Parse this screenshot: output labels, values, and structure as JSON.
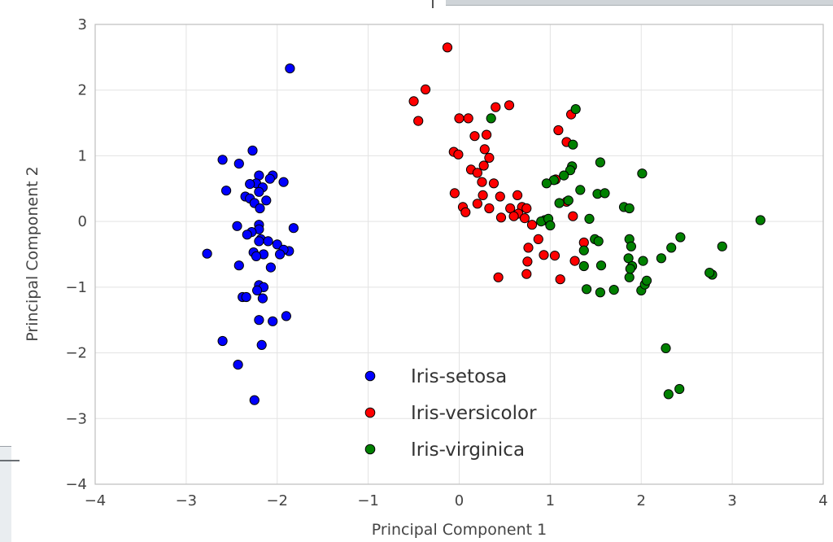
{
  "chart_data": {
    "type": "scatter",
    "xlabel": "Principal Component 1",
    "ylabel": "Principal Component 2",
    "xlim": [
      -4,
      4
    ],
    "ylim": [
      -4,
      3
    ],
    "xticks": [
      -4,
      -3,
      -2,
      -1,
      0,
      1,
      2,
      3,
      4
    ],
    "yticks": [
      -4,
      -3,
      -2,
      -1,
      0,
      1,
      2,
      3
    ],
    "xtick_labels": [
      "−4",
      "−3",
      "−2",
      "−1",
      "0",
      "1",
      "2",
      "3",
      "4"
    ],
    "ytick_labels": [
      "−4",
      "−3",
      "−2",
      "−1",
      "0",
      "1",
      "2",
      "3"
    ],
    "grid": true,
    "legend_position": "lower-center",
    "series": [
      {
        "name": "Iris-setosa",
        "color": "#0000ff",
        "points": [
          [
            -1.86,
            2.33
          ],
          [
            -2.27,
            1.08
          ],
          [
            -2.6,
            0.94
          ],
          [
            -2.42,
            0.88
          ],
          [
            -2.2,
            0.7
          ],
          [
            -2.05,
            0.7
          ],
          [
            -2.08,
            0.65
          ],
          [
            -2.23,
            0.58
          ],
          [
            -1.93,
            0.6
          ],
          [
            -2.3,
            0.57
          ],
          [
            -2.16,
            0.52
          ],
          [
            -2.2,
            0.45
          ],
          [
            -2.56,
            0.47
          ],
          [
            -2.35,
            0.38
          ],
          [
            -2.3,
            0.35
          ],
          [
            -2.12,
            0.32
          ],
          [
            -2.25,
            0.28
          ],
          [
            -2.19,
            0.2
          ],
          [
            -2.2,
            -0.05
          ],
          [
            -2.44,
            -0.07
          ],
          [
            -2.2,
            -0.12
          ],
          [
            -2.28,
            -0.16
          ],
          [
            -2.33,
            -0.2
          ],
          [
            -1.82,
            -0.1
          ],
          [
            -2.18,
            -0.27
          ],
          [
            -2.1,
            -0.3
          ],
          [
            -2.2,
            -0.3
          ],
          [
            -2.0,
            -0.35
          ],
          [
            -2.26,
            -0.47
          ],
          [
            -1.87,
            -0.45
          ],
          [
            -1.93,
            -0.43
          ],
          [
            -2.15,
            -0.5
          ],
          [
            -2.23,
            -0.53
          ],
          [
            -1.97,
            -0.5
          ],
          [
            -2.77,
            -0.49
          ],
          [
            -2.42,
            -0.67
          ],
          [
            -2.07,
            -0.7
          ],
          [
            -2.2,
            -0.97
          ],
          [
            -2.15,
            -1.0
          ],
          [
            -2.22,
            -1.05
          ],
          [
            -2.16,
            -1.17
          ],
          [
            -2.38,
            -1.15
          ],
          [
            -2.34,
            -1.15
          ],
          [
            -1.9,
            -1.44
          ],
          [
            -2.2,
            -1.5
          ],
          [
            -2.05,
            -1.52
          ],
          [
            -2.17,
            -1.88
          ],
          [
            -2.6,
            -1.82
          ],
          [
            -2.43,
            -2.18
          ],
          [
            -2.25,
            -2.72
          ]
        ]
      },
      {
        "name": "Iris-versicolor",
        "color": "#ff0000",
        "points": [
          [
            -0.13,
            2.65
          ],
          [
            -0.37,
            2.01
          ],
          [
            -0.5,
            1.83
          ],
          [
            -0.45,
            1.53
          ],
          [
            0.4,
            1.74
          ],
          [
            0.55,
            1.77
          ],
          [
            0.0,
            1.57
          ],
          [
            0.1,
            1.57
          ],
          [
            0.17,
            1.3
          ],
          [
            0.3,
            1.32
          ],
          [
            0.28,
            1.1
          ],
          [
            0.33,
            0.97
          ],
          [
            -0.06,
            1.06
          ],
          [
            -0.01,
            1.02
          ],
          [
            0.13,
            0.79
          ],
          [
            0.27,
            0.85
          ],
          [
            0.2,
            0.74
          ],
          [
            0.25,
            0.6
          ],
          [
            0.38,
            0.58
          ],
          [
            -0.05,
            0.43
          ],
          [
            0.26,
            0.4
          ],
          [
            0.45,
            0.38
          ],
          [
            0.64,
            0.4
          ],
          [
            0.2,
            0.27
          ],
          [
            0.04,
            0.22
          ],
          [
            0.07,
            0.14
          ],
          [
            0.33,
            0.2
          ],
          [
            0.56,
            0.2
          ],
          [
            0.69,
            0.22
          ],
          [
            0.74,
            0.2
          ],
          [
            0.65,
            0.12
          ],
          [
            0.6,
            0.08
          ],
          [
            0.46,
            0.06
          ],
          [
            0.72,
            0.05
          ],
          [
            0.8,
            -0.05
          ],
          [
            1.18,
            0.3
          ],
          [
            1.06,
            0.64
          ],
          [
            1.18,
            1.21
          ],
          [
            1.09,
            1.39
          ],
          [
            1.23,
            1.63
          ],
          [
            1.25,
            0.08
          ],
          [
            0.76,
            -0.4
          ],
          [
            0.87,
            -0.27
          ],
          [
            0.93,
            -0.51
          ],
          [
            0.75,
            -0.61
          ],
          [
            0.74,
            -0.8
          ],
          [
            1.11,
            -0.88
          ],
          [
            0.43,
            -0.85
          ],
          [
            1.05,
            -0.52
          ],
          [
            1.27,
            -0.6
          ],
          [
            1.37,
            -0.32
          ]
        ]
      },
      {
        "name": "Iris-virginica",
        "color": "#008000",
        "points": [
          [
            1.28,
            1.71
          ],
          [
            0.35,
            1.57
          ],
          [
            1.25,
            1.17
          ],
          [
            1.55,
            0.9
          ],
          [
            2.01,
            0.73
          ],
          [
            1.24,
            0.84
          ],
          [
            1.22,
            0.78
          ],
          [
            1.15,
            0.7
          ],
          [
            1.04,
            0.63
          ],
          [
            0.96,
            0.58
          ],
          [
            1.33,
            0.48
          ],
          [
            1.52,
            0.42
          ],
          [
            1.6,
            0.43
          ],
          [
            1.2,
            0.32
          ],
          [
            1.1,
            0.28
          ],
          [
            1.81,
            0.22
          ],
          [
            1.87,
            0.2
          ],
          [
            0.94,
            0.02
          ],
          [
            0.9,
            0.0
          ],
          [
            1.43,
            0.04
          ],
          [
            0.98,
            0.04
          ],
          [
            1.0,
            -0.06
          ],
          [
            3.31,
            0.02
          ],
          [
            1.49,
            -0.27
          ],
          [
            1.53,
            -0.3
          ],
          [
            1.87,
            -0.27
          ],
          [
            2.43,
            -0.24
          ],
          [
            2.89,
            -0.38
          ],
          [
            1.89,
            -0.38
          ],
          [
            2.33,
            -0.4
          ],
          [
            1.86,
            -0.56
          ],
          [
            2.22,
            -0.56
          ],
          [
            1.9,
            -0.68
          ],
          [
            2.02,
            -0.6
          ],
          [
            1.56,
            -0.67
          ],
          [
            1.37,
            -0.44
          ],
          [
            1.4,
            -1.03
          ],
          [
            1.55,
            -1.08
          ],
          [
            1.7,
            -1.04
          ],
          [
            2.0,
            -1.05
          ],
          [
            2.04,
            -0.96
          ],
          [
            2.06,
            -0.9
          ],
          [
            1.87,
            -0.85
          ],
          [
            2.78,
            -0.81
          ],
          [
            2.75,
            -0.78
          ],
          [
            1.37,
            -0.68
          ],
          [
            2.27,
            -1.93
          ],
          [
            2.42,
            -2.55
          ],
          [
            2.3,
            -2.63
          ],
          [
            1.88,
            -0.72
          ]
        ]
      }
    ]
  }
}
